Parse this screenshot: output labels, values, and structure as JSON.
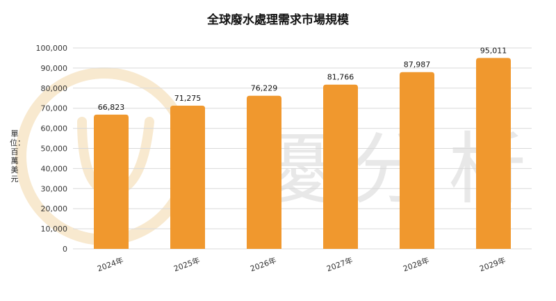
{
  "chart_data": {
    "type": "bar",
    "title": "全球廢水處理需求市場規模",
    "ylabel": "單位：百萬美元",
    "xlabel": "",
    "categories": [
      "2024年",
      "2025年",
      "2026年",
      "2027年",
      "2028年",
      "2029年"
    ],
    "values": [
      66823,
      71275,
      76229,
      81766,
      87987,
      95011
    ],
    "data_labels": [
      "66,823",
      "71,275",
      "76,229",
      "81,766",
      "87,987",
      "95,011"
    ],
    "yticks": [
      "0",
      "10,000",
      "20,000",
      "30,000",
      "40,000",
      "50,000",
      "60,000",
      "70,000",
      "80,000",
      "90,000",
      "100,000"
    ],
    "ylim": [
      0,
      100000
    ],
    "grid": true,
    "bar_color": "#F0982E",
    "grid_color": "#D9D9D9"
  },
  "watermark": {
    "text": "優分析",
    "color": "#E8E8E8",
    "logo_color": "#F8E9CF"
  }
}
